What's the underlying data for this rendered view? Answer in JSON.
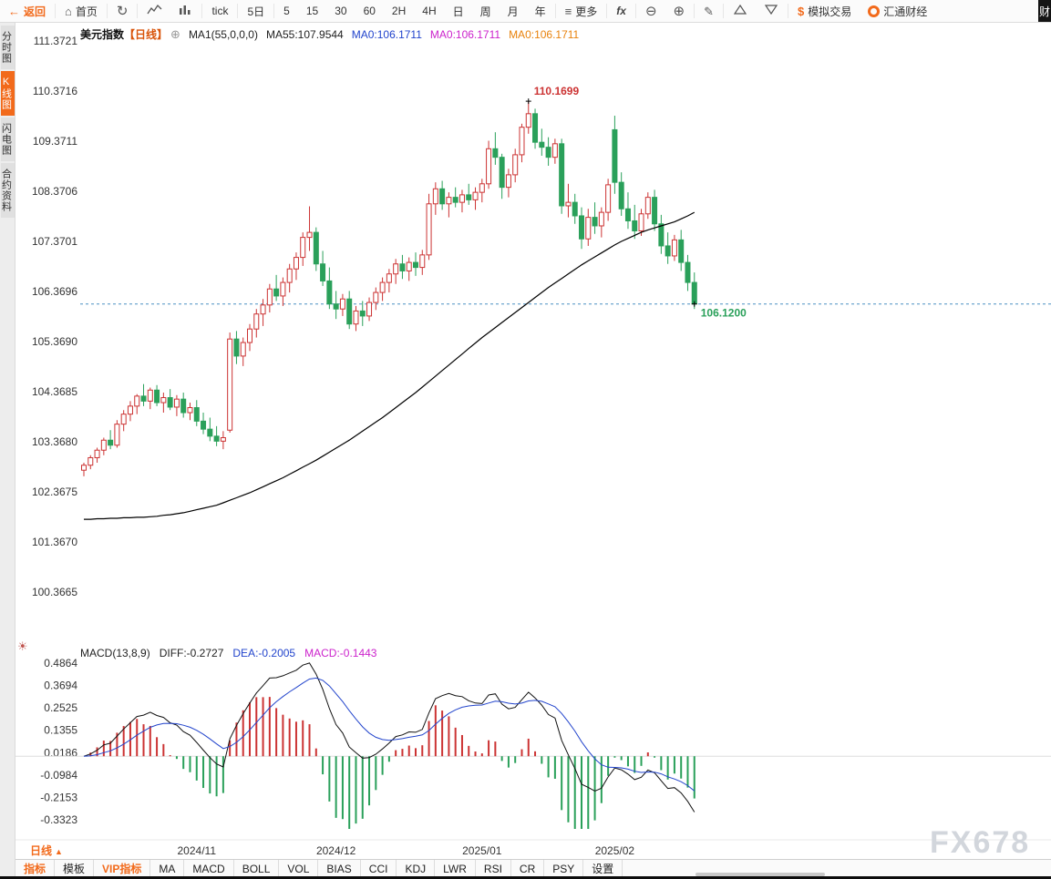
{
  "toolbar": {
    "back": "返回",
    "home": "首页",
    "tick": "tick",
    "five_day": "5日",
    "periods": [
      "5",
      "15",
      "30",
      "60",
      "2H",
      "4H",
      "日",
      "周",
      "月",
      "年"
    ],
    "more": "更多",
    "fx": "fx",
    "sim_trading": "模拟交易",
    "brand": "汇通财经",
    "right_edge": "财"
  },
  "sidebar": {
    "items": [
      {
        "label": "分时图",
        "active": false
      },
      {
        "label": "K线图",
        "active": true
      },
      {
        "label": "闪电图",
        "active": false
      },
      {
        "label": "合约资料",
        "active": false
      }
    ]
  },
  "chart_header": {
    "symbol": "美元指数",
    "period_tag": "【日线】",
    "ma_param": "MA1(55,0,0,0)",
    "ma55": "MA55:107.9544",
    "ma0_blue": "MA0:106.1711",
    "ma0_magenta": "MA0:106.1711",
    "ma0_orange": "MA0:106.1711"
  },
  "macd_header": {
    "title": "MACD(13,8,9)",
    "diff": "DIFF:-0.2727",
    "dea": "DEA:-0.2005",
    "macd": "MACD:-0.1443"
  },
  "bottom": {
    "period_label": "日线",
    "tabs": [
      {
        "label": "指标",
        "accent": true
      },
      {
        "label": "模板",
        "accent": false
      },
      {
        "label": "VIP指标",
        "accent": true
      },
      {
        "label": "MA",
        "accent": false
      },
      {
        "label": "MACD",
        "accent": false
      },
      {
        "label": "BOLL",
        "accent": false
      },
      {
        "label": "VOL",
        "accent": false
      },
      {
        "label": "BIAS",
        "accent": false
      },
      {
        "label": "CCI",
        "accent": false
      },
      {
        "label": "KDJ",
        "accent": false
      },
      {
        "label": "LWR",
        "accent": false
      },
      {
        "label": "RSI",
        "accent": false
      },
      {
        "label": "CR",
        "accent": false
      },
      {
        "label": "PSY",
        "accent": false
      },
      {
        "label": "设置",
        "accent": false
      }
    ]
  },
  "watermark": "FX678",
  "colors": {
    "accent": "#f26a1b",
    "up": "#cc3333",
    "down": "#2aa05a",
    "ma_line": "#000000",
    "dea_line": "#2244cc",
    "diff_line": "#111111",
    "dotted_line": "#4a90c4",
    "blue_text": "#2244cc",
    "magenta_text": "#cc22cc",
    "orange_text": "#e8820c",
    "watermark": "#d2d6dc"
  },
  "chart_data": {
    "type": "candlestick",
    "title": "美元指数 日线",
    "y_axis_ticks": [
      "111.3721",
      "110.3716",
      "109.3711",
      "108.3706",
      "107.3701",
      "106.3696",
      "105.3690",
      "104.3685",
      "103.3680",
      "102.3675",
      "101.3670",
      "100.3665"
    ],
    "y_range": [
      100.3665,
      111.3721
    ],
    "x_tick_labels": [
      {
        "label": "2024/11",
        "index": 17
      },
      {
        "label": "2024/12",
        "index": 38
      },
      {
        "label": "2025/01",
        "index": 60
      },
      {
        "label": "2025/02",
        "index": 80
      }
    ],
    "series": [
      {
        "name": "K线",
        "type": "candlestick",
        "ohlc": [
          [
            102.8,
            102.95,
            102.68,
            102.9
          ],
          [
            102.9,
            103.1,
            102.82,
            103.05
          ],
          [
            103.05,
            103.25,
            102.95,
            103.2
          ],
          [
            103.2,
            103.45,
            103.1,
            103.4
          ],
          [
            103.4,
            103.6,
            103.22,
            103.3
          ],
          [
            103.3,
            103.8,
            103.25,
            103.72
          ],
          [
            103.72,
            104.0,
            103.58,
            103.92
          ],
          [
            103.92,
            104.18,
            103.78,
            104.08
          ],
          [
            104.08,
            104.32,
            103.92,
            104.28
          ],
          [
            104.28,
            104.52,
            104.08,
            104.18
          ],
          [
            104.18,
            104.45,
            104.02,
            104.4
          ],
          [
            104.4,
            104.5,
            104.08,
            104.15
          ],
          [
            104.15,
            104.35,
            103.95,
            104.25
          ],
          [
            104.25,
            104.42,
            104.0,
            104.06
          ],
          [
            104.06,
            104.3,
            103.88,
            104.22
          ],
          [
            104.22,
            104.35,
            103.85,
            103.95
          ],
          [
            103.95,
            104.15,
            103.8,
            104.05
          ],
          [
            104.05,
            104.2,
            103.68,
            103.78
          ],
          [
            103.78,
            103.95,
            103.52,
            103.62
          ],
          [
            103.62,
            103.85,
            103.38,
            103.48
          ],
          [
            103.48,
            103.68,
            103.28,
            103.38
          ],
          [
            103.38,
            103.58,
            103.22,
            103.45
          ],
          [
            103.6,
            105.55,
            103.55,
            105.42
          ],
          [
            105.42,
            105.58,
            104.92,
            105.08
          ],
          [
            105.08,
            105.45,
            104.88,
            105.35
          ],
          [
            105.35,
            105.72,
            105.18,
            105.62
          ],
          [
            105.62,
            106.02,
            105.45,
            105.92
          ],
          [
            105.92,
            106.22,
            105.68,
            106.1
          ],
          [
            106.1,
            106.52,
            105.95,
            106.42
          ],
          [
            106.42,
            106.7,
            106.18,
            106.28
          ],
          [
            106.28,
            106.65,
            106.08,
            106.55
          ],
          [
            106.55,
            106.92,
            106.35,
            106.82
          ],
          [
            106.82,
            107.15,
            106.6,
            107.05
          ],
          [
            107.05,
            107.55,
            106.88,
            107.45
          ],
          [
            107.45,
            108.07,
            107.18,
            107.55
          ],
          [
            107.55,
            107.65,
            106.78,
            106.92
          ],
          [
            106.92,
            107.18,
            106.48,
            106.58
          ],
          [
            106.58,
            106.85,
            106.02,
            106.12
          ],
          [
            106.12,
            106.38,
            105.82,
            106.02
          ],
          [
            106.02,
            106.32,
            105.88,
            106.22
          ],
          [
            106.22,
            106.38,
            105.62,
            105.72
          ],
          [
            105.72,
            106.08,
            105.58,
            105.98
          ],
          [
            105.98,
            106.18,
            105.68,
            105.88
          ],
          [
            105.88,
            106.25,
            105.78,
            106.15
          ],
          [
            106.15,
            106.45,
            106.0,
            106.35
          ],
          [
            106.35,
            106.65,
            106.18,
            106.55
          ],
          [
            106.55,
            106.82,
            106.35,
            106.72
          ],
          [
            106.72,
            107.02,
            106.52,
            106.92
          ],
          [
            106.92,
            107.1,
            106.62,
            106.78
          ],
          [
            106.78,
            107.05,
            106.58,
            106.95
          ],
          [
            106.95,
            107.15,
            106.68,
            106.85
          ],
          [
            106.85,
            107.2,
            106.7,
            107.1
          ],
          [
            107.1,
            108.32,
            107.0,
            108.12
          ],
          [
            108.12,
            108.55,
            107.9,
            108.42
          ],
          [
            108.42,
            108.58,
            108.0,
            108.12
          ],
          [
            108.12,
            108.35,
            107.85,
            108.25
          ],
          [
            108.25,
            108.45,
            108.05,
            108.15
          ],
          [
            108.15,
            108.4,
            107.95,
            108.3
          ],
          [
            108.3,
            108.52,
            108.1,
            108.2
          ],
          [
            108.2,
            108.45,
            108.0,
            108.35
          ],
          [
            108.35,
            108.62,
            108.15,
            108.52
          ],
          [
            108.52,
            109.38,
            108.42,
            109.22
          ],
          [
            109.22,
            109.55,
            108.9,
            109.05
          ],
          [
            109.05,
            109.12,
            108.22,
            108.45
          ],
          [
            108.45,
            108.82,
            108.25,
            108.7
          ],
          [
            108.7,
            109.22,
            108.55,
            109.1
          ],
          [
            109.1,
            109.72,
            108.95,
            109.65
          ],
          [
            109.65,
            110.17,
            109.52,
            109.92
          ],
          [
            109.92,
            110.02,
            109.22,
            109.35
          ],
          [
            109.35,
            109.62,
            109.08,
            109.25
          ],
          [
            109.25,
            109.45,
            108.88,
            109.05
          ],
          [
            109.05,
            109.42,
            108.92,
            109.32
          ],
          [
            109.32,
            109.42,
            107.92,
            108.08
          ],
          [
            108.08,
            108.52,
            107.85,
            108.15
          ],
          [
            108.15,
            108.32,
            107.72,
            107.88
          ],
          [
            107.88,
            108.05,
            107.22,
            107.42
          ],
          [
            107.42,
            108.02,
            107.28,
            107.85
          ],
          [
            107.85,
            108.15,
            107.52,
            107.68
          ],
          [
            107.68,
            108.05,
            107.45,
            107.95
          ],
          [
            107.95,
            108.62,
            107.78,
            108.5
          ],
          [
            109.6,
            109.88,
            108.32,
            108.55
          ],
          [
            108.55,
            108.75,
            107.88,
            108.02
          ],
          [
            108.02,
            108.35,
            107.62,
            107.78
          ],
          [
            107.78,
            108.1,
            107.42,
            107.58
          ],
          [
            107.58,
            108.02,
            107.48,
            107.92
          ],
          [
            107.92,
            108.35,
            107.82,
            108.25
          ],
          [
            108.25,
            108.4,
            107.58,
            107.72
          ],
          [
            107.72,
            107.9,
            107.12,
            107.28
          ],
          [
            107.28,
            107.55,
            106.92,
            107.08
          ],
          [
            107.08,
            107.5,
            106.98,
            107.4
          ],
          [
            107.4,
            107.6,
            106.78,
            106.95
          ],
          [
            106.95,
            107.1,
            106.38,
            106.55
          ],
          [
            106.55,
            106.75,
            106.02,
            106.12
          ]
        ]
      },
      {
        "name": "MA55",
        "type": "line",
        "values": [
          101.82,
          101.82,
          101.83,
          101.83,
          101.84,
          101.84,
          101.85,
          101.85,
          101.86,
          101.86,
          101.87,
          101.88,
          101.9,
          101.91,
          101.93,
          101.95,
          101.98,
          102.01,
          102.04,
          102.07,
          102.1,
          102.15,
          102.2,
          102.25,
          102.3,
          102.35,
          102.41,
          102.47,
          102.53,
          102.59,
          102.65,
          102.72,
          102.79,
          102.86,
          102.93,
          103.0,
          103.08,
          103.16,
          103.24,
          103.32,
          103.4,
          103.49,
          103.58,
          103.67,
          103.76,
          103.85,
          103.95,
          104.05,
          104.15,
          104.25,
          104.35,
          104.46,
          104.57,
          104.68,
          104.79,
          104.9,
          105.01,
          105.12,
          105.23,
          105.34,
          105.45,
          105.55,
          105.65,
          105.75,
          105.85,
          105.95,
          106.05,
          106.15,
          106.25,
          106.35,
          106.45,
          106.54,
          106.63,
          106.72,
          106.81,
          106.9,
          106.98,
          107.06,
          107.14,
          107.22,
          107.3,
          107.37,
          107.43,
          107.49,
          107.55,
          107.6,
          107.64,
          107.68,
          107.72,
          107.76,
          107.82,
          107.88,
          107.95
        ]
      }
    ],
    "annotations": {
      "high": {
        "index": 67,
        "price": 110.1699,
        "label": "110.1699"
      },
      "last": {
        "price": 106.12,
        "label": "106.1200"
      }
    },
    "sub_chart": {
      "type": "macd",
      "params_values": {
        "short": 8,
        "long": 13,
        "signal": 9
      },
      "y_axis_ticks": [
        "0.4864",
        "0.3694",
        "0.2525",
        "0.1355",
        "0.0186",
        "-0.0984",
        "-0.2153",
        "-0.3323"
      ],
      "y_range": [
        -0.3323,
        0.4864
      ],
      "diff_last": -0.2727,
      "dea_last": -0.2005,
      "macd_last": -0.1443
    }
  }
}
